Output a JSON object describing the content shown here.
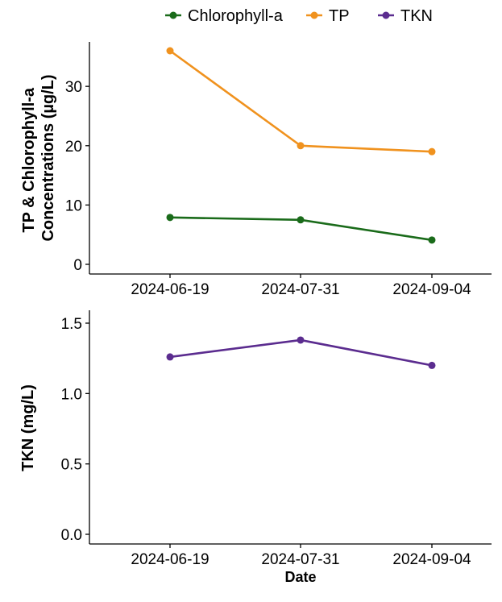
{
  "chart_data": [
    {
      "type": "line",
      "categories": [
        "2024-06-19",
        "2024-07-31",
        "2024-09-04"
      ],
      "ylabel_lines": [
        "TP & Chlorophyll-a",
        "Concentrations (µg/L)"
      ],
      "yticks": [
        "0",
        "10",
        "20",
        "30"
      ],
      "ylim": [
        0,
        36
      ],
      "grid": false,
      "legend_position": "top",
      "series": [
        {
          "name": "Chlorophyll-a",
          "color": "#1a6b1a",
          "values": [
            7.9,
            7.5,
            4.1
          ]
        },
        {
          "name": "TP",
          "color": "#f0921e",
          "values": [
            36.0,
            20.0,
            19.0
          ]
        }
      ]
    },
    {
      "type": "line",
      "categories": [
        "2024-06-19",
        "2024-07-31",
        "2024-09-04"
      ],
      "ylabel": "TKN (mg/L)",
      "yticks": [
        "0.0",
        "0.5",
        "1.0",
        "1.5"
      ],
      "ylim": [
        0,
        1.5
      ],
      "grid": false,
      "series": [
        {
          "name": "TKN",
          "color": "#5b2c8f",
          "values": [
            1.26,
            1.38,
            1.2
          ]
        }
      ]
    }
  ],
  "xlabel": "Date"
}
